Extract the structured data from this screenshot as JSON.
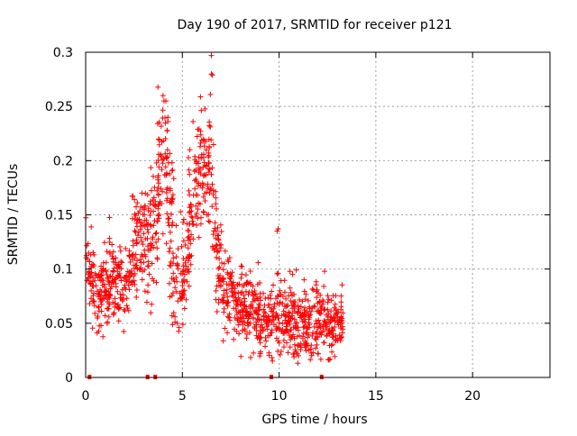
{
  "chart_data": {
    "type": "scatter",
    "title": "Day 190 of 2017, SRMTID for receiver p121",
    "xlabel": "GPS time / hours",
    "ylabel": "SRMTID / TECUs",
    "xlim": [
      0,
      24
    ],
    "ylim": [
      0,
      0.3
    ],
    "xticks": [
      0,
      5,
      10,
      15,
      20
    ],
    "yticks": [
      0,
      0.05,
      0.1,
      0.15,
      0.2,
      0.25,
      0.3
    ],
    "grid": true,
    "legend": "none",
    "marker": "plus",
    "color": "#ff0000",
    "zero_marks_x": [
      0.2,
      3.2,
      3.6,
      9.6,
      12.2
    ],
    "trend": [
      [
        0.0,
        0.12,
        0.02
      ],
      [
        0.3,
        0.09,
        0.025
      ],
      [
        0.6,
        0.075,
        0.02
      ],
      [
        1.0,
        0.08,
        0.022
      ],
      [
        1.5,
        0.088,
        0.022
      ],
      [
        2.0,
        0.085,
        0.022
      ],
      [
        2.4,
        0.11,
        0.025
      ],
      [
        2.8,
        0.13,
        0.025
      ],
      [
        3.1,
        0.12,
        0.03
      ],
      [
        3.5,
        0.14,
        0.035
      ],
      [
        3.8,
        0.185,
        0.04
      ],
      [
        4.1,
        0.21,
        0.035
      ],
      [
        4.4,
        0.13,
        0.04
      ],
      [
        4.7,
        0.09,
        0.035
      ],
      [
        5.0,
        0.08,
        0.03
      ],
      [
        5.3,
        0.13,
        0.035
      ],
      [
        5.6,
        0.17,
        0.035
      ],
      [
        5.9,
        0.19,
        0.03
      ],
      [
        6.2,
        0.2,
        0.03
      ],
      [
        6.5,
        0.18,
        0.04
      ],
      [
        6.8,
        0.11,
        0.03
      ],
      [
        7.2,
        0.08,
        0.025
      ],
      [
        7.6,
        0.07,
        0.02
      ],
      [
        8.0,
        0.065,
        0.02
      ],
      [
        8.5,
        0.06,
        0.02
      ],
      [
        9.0,
        0.055,
        0.02
      ],
      [
        9.5,
        0.052,
        0.02
      ],
      [
        10.0,
        0.06,
        0.022
      ],
      [
        10.5,
        0.058,
        0.02
      ],
      [
        11.0,
        0.05,
        0.02
      ],
      [
        11.5,
        0.045,
        0.018
      ],
      [
        12.0,
        0.055,
        0.02
      ],
      [
        12.5,
        0.052,
        0.018
      ],
      [
        13.0,
        0.05,
        0.018
      ],
      [
        13.3,
        0.052,
        0.018
      ]
    ],
    "extra_points": [
      [
        6.5,
        0.297
      ],
      [
        6.5,
        0.28
      ],
      [
        6.55,
        0.279
      ],
      [
        4.0,
        0.26
      ],
      [
        4.05,
        0.255
      ],
      [
        5.55,
        0.236
      ],
      [
        4.25,
        0.24
      ],
      [
        6.45,
        0.261
      ],
      [
        9.95,
        0.137
      ],
      [
        9.9,
        0.135
      ],
      [
        12.35,
        0.098
      ],
      [
        11.95,
        0.03
      ],
      [
        12.0,
        0.022
      ],
      [
        11.0,
        0.02
      ],
      [
        13.2,
        0.055
      ]
    ],
    "n_points": 1400,
    "seed": 190
  }
}
